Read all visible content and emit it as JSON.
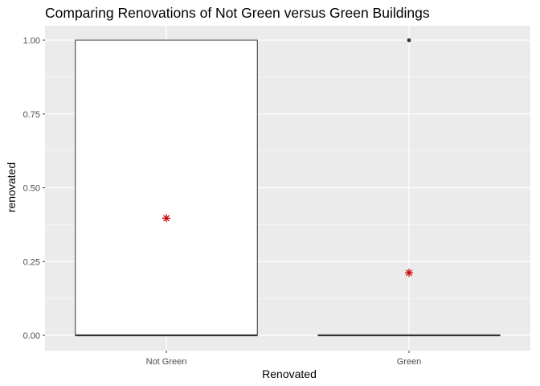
{
  "chart_data": {
    "type": "boxplot",
    "title": "Comparing Renovations of Not Green versus Green Buildings",
    "xlabel": "Renovated",
    "ylabel": "renovated",
    "categories": [
      "Not Green",
      "Green"
    ],
    "ylim": [
      -0.05,
      1.05
    ],
    "yticks": [
      0.0,
      0.25,
      0.5,
      0.75,
      1.0
    ],
    "ytick_labels": [
      "0.00",
      "0.25",
      "0.50",
      "0.75",
      "1.00"
    ],
    "boxes": [
      {
        "category": "Not Green",
        "min": 0,
        "q1": 0,
        "median": 0,
        "q3": 1,
        "max": 1,
        "mean": 0.397,
        "outliers": []
      },
      {
        "category": "Green",
        "min": 0,
        "q1": 0,
        "median": 0,
        "q3": 0,
        "max": 0,
        "mean": 0.212,
        "outliers": [
          1
        ]
      }
    ],
    "colors": {
      "panel_background": "#ebebeb",
      "grid": "#ffffff",
      "box_fill": "#ffffff",
      "box_line": "#333333",
      "outlier": "#333333",
      "mean_marker": "#cc0000"
    },
    "grid": true,
    "legend": "none"
  }
}
